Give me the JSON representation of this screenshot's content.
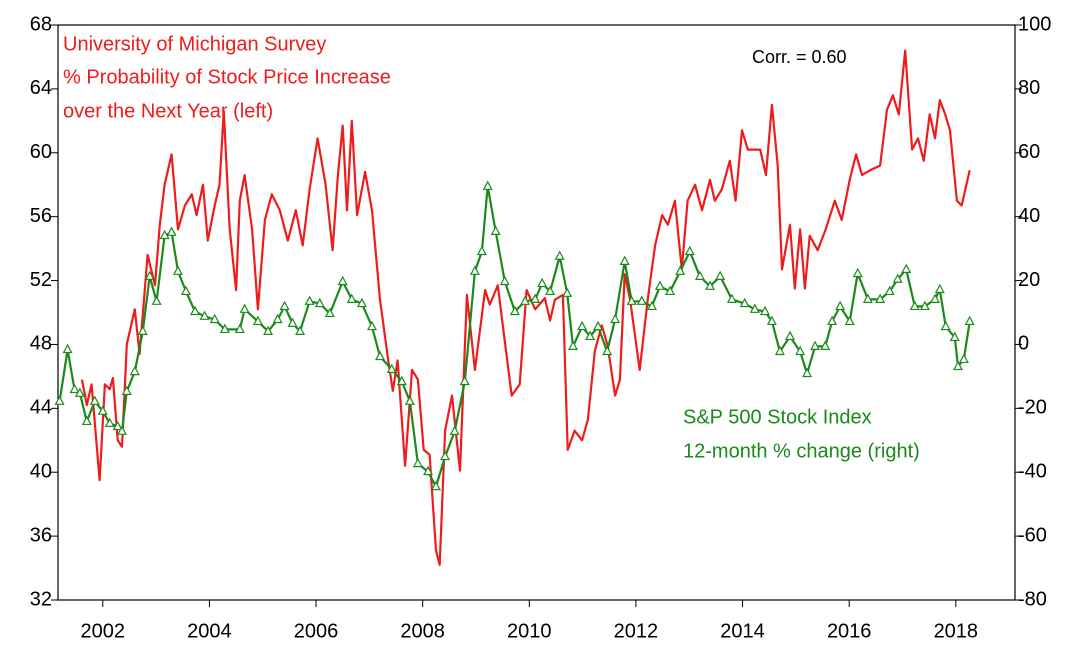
{
  "chart_data": {
    "type": "line",
    "xlim": [
      2001.16,
      2019.11
    ],
    "xticks": [
      2002,
      2004,
      2006,
      2008,
      2010,
      2012,
      2014,
      2016,
      2018
    ],
    "ylim": [
      32,
      68
    ],
    "yticks": [
      32,
      36,
      40,
      44,
      48,
      52,
      56,
      60,
      64,
      68
    ],
    "y2lim": [
      -80,
      100
    ],
    "y2ticks": [
      -80,
      -60,
      -40,
      -20,
      0,
      20,
      40,
      60,
      80,
      100
    ],
    "annotations": [
      "% Probability of Stock Price Increase",
      "over the Next Year  (left)",
      "12-month % change  (right)",
      "Corr. = 0.60"
    ],
    "series": [
      {
        "name": "University of Michigan Survey",
        "color": "#ee1c1c",
        "axis": "y",
        "x": [
          2001.61,
          2001.7,
          2001.79,
          2001.94,
          2002.04,
          2002.13,
          2002.19,
          2002.28,
          2002.36,
          2002.45,
          2002.6,
          2002.69,
          2002.84,
          2002.98,
          2003.07,
          2003.16,
          2003.29,
          2003.41,
          2003.54,
          2003.67,
          2003.76,
          2003.88,
          2003.97,
          2004.1,
          2004.19,
          2004.27,
          2004.38,
          2004.5,
          2004.57,
          2004.66,
          2004.8,
          2004.91,
          2005.04,
          2005.17,
          2005.32,
          2005.47,
          2005.62,
          2005.75,
          2005.88,
          2006.03,
          2006.18,
          2006.31,
          2006.41,
          2006.5,
          2006.58,
          2006.67,
          2006.77,
          2006.92,
          2007.05,
          2007.2,
          2007.35,
          2007.44,
          2007.53,
          2007.67,
          2007.8,
          2007.91,
          2008.02,
          2008.13,
          2008.25,
          2008.32,
          2008.42,
          2008.55,
          2008.7,
          2008.83,
          2008.98,
          2009.17,
          2009.26,
          2009.41,
          2009.54,
          2009.67,
          2009.82,
          2009.95,
          2010.11,
          2010.29,
          2010.39,
          2010.48,
          2010.63,
          2010.72,
          2010.85,
          2010.99,
          2011.1,
          2011.23,
          2011.36,
          2011.47,
          2011.61,
          2011.7,
          2011.79,
          2011.89,
          2012.07,
          2012.22,
          2012.36,
          2012.49,
          2012.6,
          2012.73,
          2012.86,
          2012.97,
          2013.11,
          2013.24,
          2013.39,
          2013.48,
          2013.61,
          2013.76,
          2013.87,
          2013.99,
          2014.1,
          2014.18,
          2014.33,
          2014.44,
          2014.55,
          2014.66,
          2014.74,
          2014.89,
          2014.98,
          2015.08,
          2015.17,
          2015.26,
          2015.41,
          2015.56,
          2015.73,
          2015.86,
          2016.01,
          2016.13,
          2016.24,
          2016.39,
          2016.58,
          2016.71,
          2016.82,
          2016.93,
          2017.05,
          2017.18,
          2017.29,
          2017.4,
          2017.51,
          2017.61,
          2017.7,
          2017.8,
          2017.89,
          2018.02,
          2018.11,
          2018.26
        ],
        "values": [
          45.8,
          44.2,
          45.5,
          39.5,
          45.5,
          45.2,
          45.9,
          42.0,
          41.6,
          48.0,
          50.2,
          47.4,
          53.6,
          51.7,
          55.5,
          58.0,
          59.9,
          55.2,
          56.7,
          57.4,
          56.1,
          58.0,
          54.5,
          56.7,
          58.0,
          62.6,
          55.2,
          51.4,
          57.0,
          58.6,
          55.2,
          50.2,
          55.8,
          57.4,
          56.4,
          54.5,
          56.4,
          54.2,
          57.7,
          60.9,
          58.0,
          53.9,
          58.6,
          61.7,
          56.4,
          62.0,
          56.1,
          58.8,
          56.4,
          50.8,
          47.1,
          45.1,
          47.0,
          40.4,
          46.4,
          45.8,
          41.4,
          41.1,
          35.1,
          34.2,
          42.6,
          44.8,
          40.1,
          51.1,
          46.4,
          51.4,
          50.5,
          51.7,
          48.2,
          44.8,
          45.5,
          51.4,
          50.2,
          50.9,
          49.5,
          50.8,
          51.1,
          41.4,
          42.6,
          42.0,
          43.3,
          47.6,
          49.2,
          47.9,
          44.8,
          45.8,
          52.4,
          50.8,
          46.4,
          50.8,
          54.2,
          56.1,
          55.5,
          57.0,
          52.7,
          57.0,
          58.0,
          56.4,
          58.3,
          57.0,
          57.7,
          59.5,
          57.0,
          61.4,
          60.2,
          60.2,
          60.2,
          58.6,
          63.0,
          59.2,
          52.7,
          55.5,
          51.5,
          55.2,
          51.5,
          54.8,
          53.9,
          55.2,
          57.0,
          55.8,
          58.3,
          59.9,
          58.6,
          58.9,
          59.2,
          62.7,
          63.6,
          62.4,
          66.4,
          60.2,
          60.9,
          59.5,
          62.4,
          60.9,
          63.3,
          62.4,
          61.4,
          57.0,
          56.7,
          58.9
        ]
      },
      {
        "name": "S&P 500 Stock Index",
        "color": "#1b8a1b",
        "axis": "y2",
        "x": [
          2001.19,
          2001.34,
          2001.47,
          2001.57,
          2001.7,
          2001.85,
          2002.0,
          2002.13,
          2002.28,
          2002.36,
          2002.45,
          2002.6,
          2002.75,
          2002.88,
          2003.01,
          2003.16,
          2003.29,
          2003.41,
          2003.56,
          2003.73,
          2003.91,
          2004.1,
          2004.29,
          2004.57,
          2004.66,
          2004.91,
          2005.1,
          2005.28,
          2005.41,
          2005.56,
          2005.7,
          2005.88,
          2006.07,
          2006.26,
          2006.5,
          2006.67,
          2006.86,
          2007.05,
          2007.2,
          2007.42,
          2007.61,
          2007.76,
          2007.91,
          2008.1,
          2008.25,
          2008.42,
          2008.6,
          2008.79,
          2008.98,
          2009.11,
          2009.22,
          2009.37,
          2009.54,
          2009.73,
          2009.92,
          2010.11,
          2010.24,
          2010.39,
          2010.57,
          2010.71,
          2010.82,
          2010.99,
          2011.14,
          2011.29,
          2011.46,
          2011.61,
          2011.79,
          2011.92,
          2012.11,
          2012.3,
          2012.45,
          2012.64,
          2012.83,
          2013.01,
          2013.2,
          2013.39,
          2013.58,
          2013.8,
          2014.04,
          2014.23,
          2014.42,
          2014.55,
          2014.7,
          2014.89,
          2015.08,
          2015.21,
          2015.36,
          2015.55,
          2015.68,
          2015.83,
          2016.01,
          2016.16,
          2016.35,
          2016.58,
          2016.76,
          2016.91,
          2017.07,
          2017.23,
          2017.42,
          2017.61,
          2017.7,
          2017.81,
          2017.98,
          2018.04,
          2018.15,
          2018.26
        ],
        "values": [
          -17.8,
          -1.6,
          -14.1,
          -15.3,
          -24.1,
          -17.8,
          -20.9,
          -24.7,
          -25.7,
          -27.2,
          -14.7,
          -8.5,
          4.1,
          21.3,
          13.5,
          34.1,
          35.1,
          22.9,
          16.6,
          10.3,
          8.8,
          7.8,
          4.7,
          4.7,
          11.0,
          7.2,
          4.1,
          7.8,
          11.9,
          6.6,
          4.1,
          13.5,
          12.8,
          9.7,
          19.7,
          14.1,
          12.8,
          5.6,
          -3.8,
          -7.8,
          -11.6,
          -17.8,
          -37.3,
          -39.8,
          -44.5,
          -35.1,
          -27.2,
          -11.6,
          22.9,
          29.1,
          49.5,
          35.4,
          19.7,
          10.3,
          13.5,
          14.1,
          19.1,
          16.6,
          27.6,
          16.0,
          -0.6,
          5.6,
          2.5,
          5.6,
          -2.2,
          7.8,
          26.0,
          13.5,
          13.5,
          11.9,
          18.2,
          16.6,
          22.9,
          29.1,
          21.3,
          18.2,
          21.3,
          14.1,
          12.8,
          11.0,
          10.3,
          7.2,
          -2.2,
          2.5,
          -2.2,
          -9.1,
          -0.6,
          -0.6,
          7.2,
          11.9,
          7.2,
          22.2,
          14.1,
          14.1,
          16.6,
          20.4,
          23.5,
          11.9,
          11.9,
          14.1,
          17.2,
          5.6,
          2.2,
          -6.9,
          -4.7,
          7.2
        ]
      }
    ]
  }
}
